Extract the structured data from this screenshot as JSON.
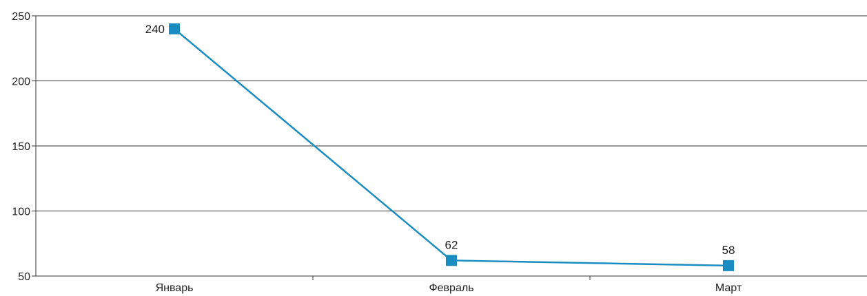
{
  "chart_data": {
    "type": "line",
    "title": "",
    "xlabel": "",
    "ylabel": "",
    "categories": [
      "Январь",
      "Февраль",
      "Март"
    ],
    "series": [
      {
        "values": [
          240,
          62,
          58
        ],
        "color": "#1a8cbf"
      }
    ],
    "ylim": [
      50,
      250
    ],
    "yticks": [
      "50",
      "100",
      "150",
      "200",
      "250"
    ],
    "data_labels": [
      "240",
      "62",
      "58"
    ],
    "grid": true,
    "legend": "none"
  }
}
